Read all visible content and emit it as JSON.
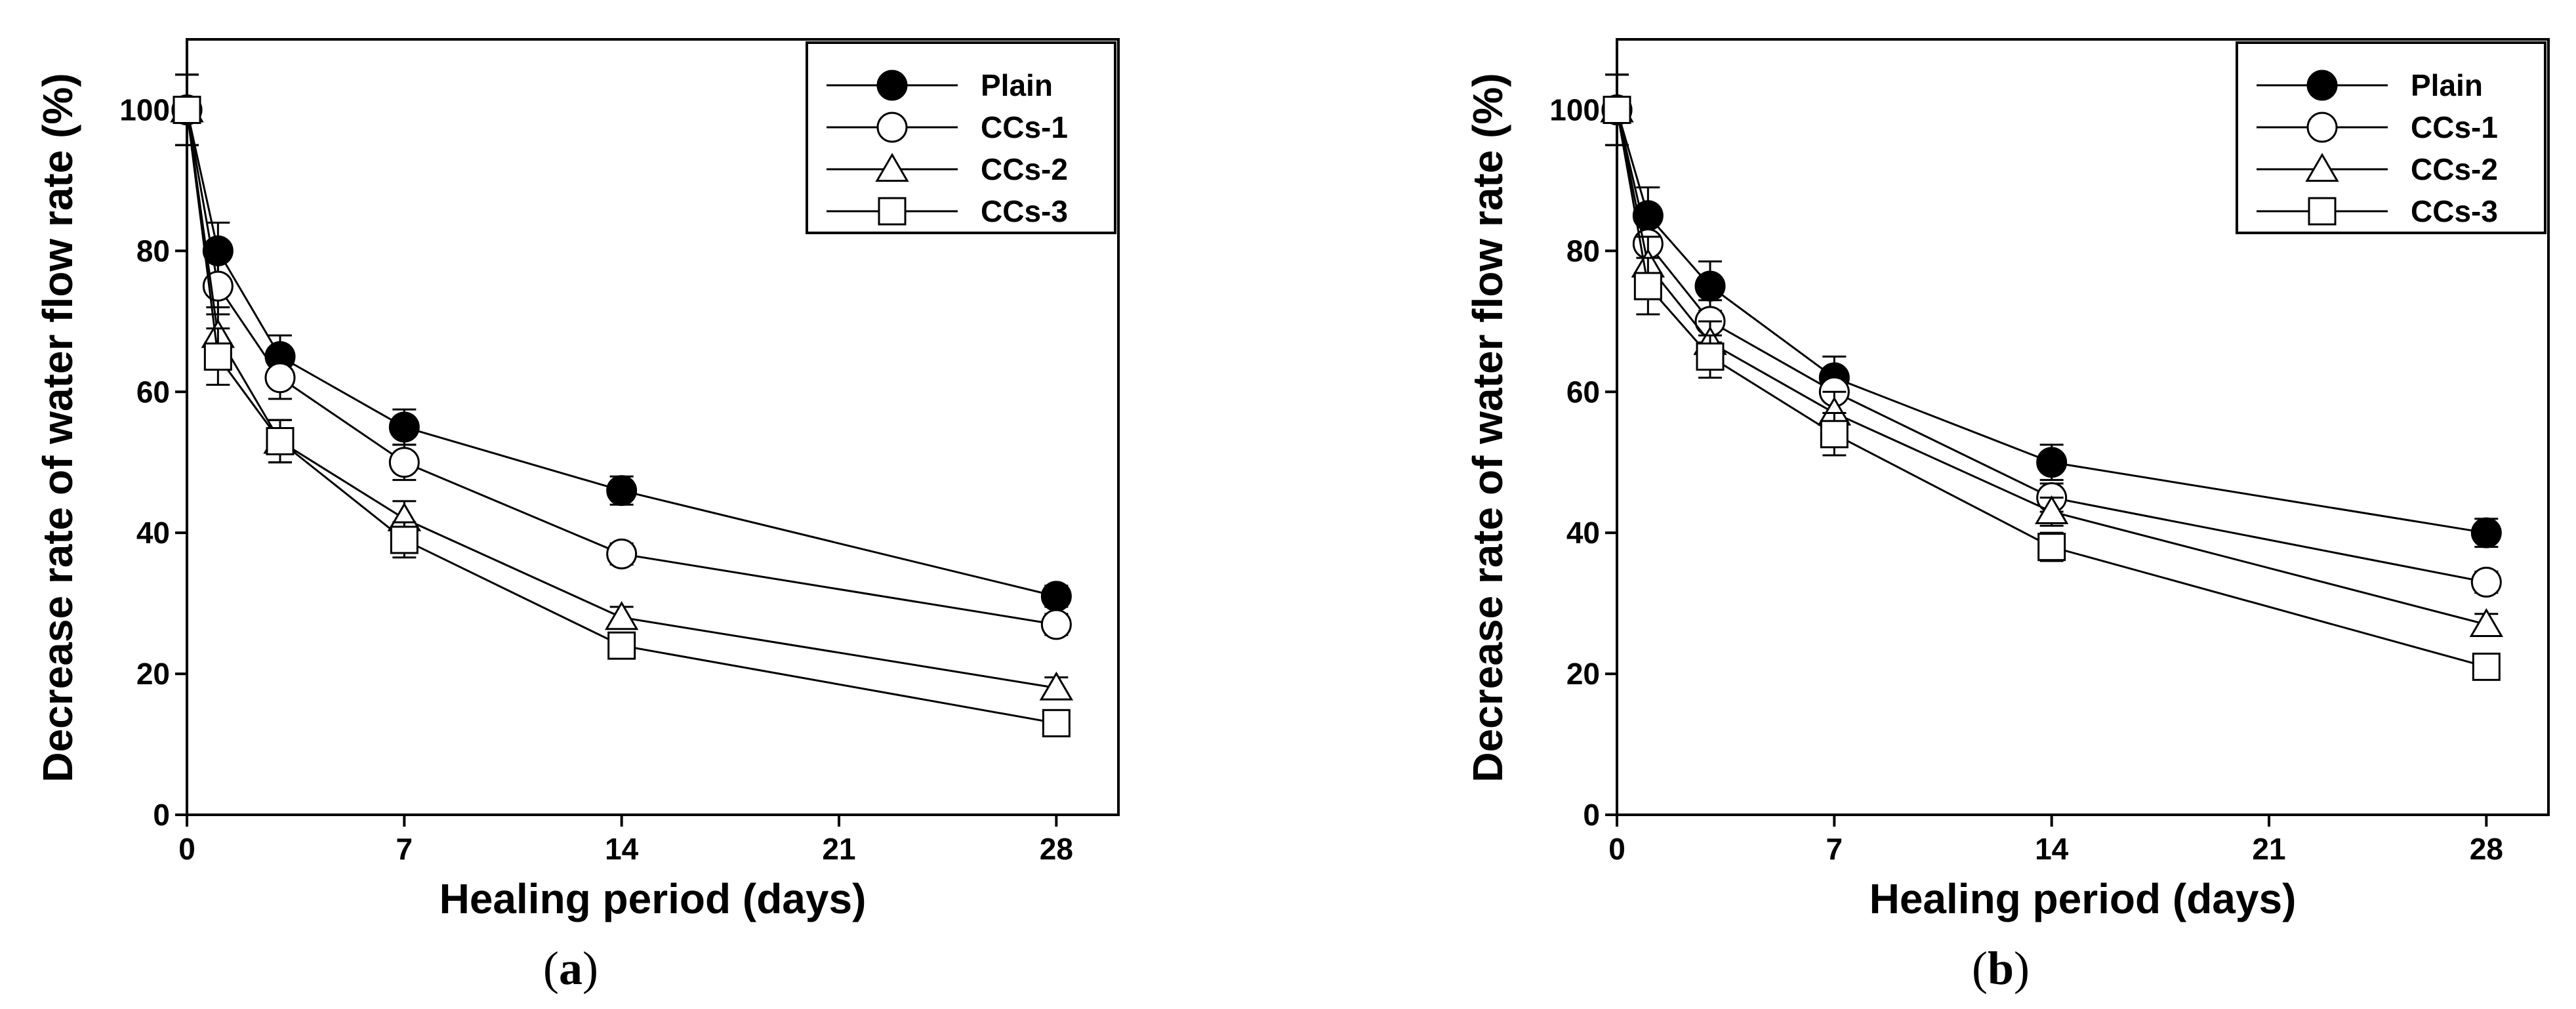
{
  "chart_data": [
    {
      "type": "line",
      "panel_label": "a",
      "xlabel": "Healing period (days)",
      "ylabel": "Decrease rate of water flow rate (%)",
      "xlim": [
        0,
        30
      ],
      "ylim": [
        0,
        110
      ],
      "xticks": [
        0,
        7,
        14,
        21,
        28
      ],
      "yticks": [
        0,
        20,
        40,
        60,
        80,
        100
      ],
      "legend_position": "top-right",
      "x": [
        0,
        1,
        3,
        7,
        14,
        28
      ],
      "series": [
        {
          "name": "Plain",
          "marker": "filled-circle",
          "values": [
            100,
            80,
            65,
            55,
            46,
            31
          ],
          "errors": [
            5,
            4,
            3,
            2.5,
            2,
            1.5
          ]
        },
        {
          "name": "CCs-1",
          "marker": "open-circle",
          "values": [
            100,
            75,
            62,
            50,
            37,
            27
          ],
          "errors": [
            5,
            4,
            3,
            2.5,
            1.5,
            1.5
          ]
        },
        {
          "name": "CCs-2",
          "marker": "open-triangle",
          "values": [
            100,
            68,
            53,
            42,
            28,
            18
          ],
          "errors": [
            5,
            4,
            3,
            2.5,
            1.5,
            1.5
          ]
        },
        {
          "name": "CCs-3",
          "marker": "open-square",
          "values": [
            100,
            65,
            53,
            39,
            24,
            13
          ],
          "errors": [
            5,
            4,
            3,
            2.5,
            1.5,
            1.5
          ]
        }
      ]
    },
    {
      "type": "line",
      "panel_label": "b",
      "xlabel": "Healing period (days)",
      "ylabel": "Decrease rate of water flow rate (%)",
      "xlim": [
        0,
        30
      ],
      "ylim": [
        0,
        110
      ],
      "xticks": [
        0,
        7,
        14,
        21,
        28
      ],
      "yticks": [
        0,
        20,
        40,
        60,
        80,
        100
      ],
      "legend_position": "top-right",
      "x": [
        0,
        1,
        3,
        7,
        14,
        28
      ],
      "series": [
        {
          "name": "Plain",
          "marker": "filled-circle",
          "values": [
            100,
            85,
            75,
            62,
            50,
            40
          ],
          "errors": [
            5,
            4,
            3.5,
            3,
            2.5,
            2
          ]
        },
        {
          "name": "CCs-1",
          "marker": "open-circle",
          "values": [
            100,
            81,
            70,
            60,
            45,
            33
          ],
          "errors": [
            5,
            4,
            3,
            3,
            2,
            1.5
          ]
        },
        {
          "name": "CCs-2",
          "marker": "open-triangle",
          "values": [
            100,
            78,
            67,
            57,
            43,
            27
          ],
          "errors": [
            5,
            4,
            3,
            3,
            2,
            1.5
          ]
        },
        {
          "name": "CCs-3",
          "marker": "open-square",
          "values": [
            100,
            75,
            65,
            54,
            38,
            21
          ],
          "errors": [
            5,
            4,
            3,
            3,
            2,
            1.5
          ]
        }
      ]
    }
  ]
}
